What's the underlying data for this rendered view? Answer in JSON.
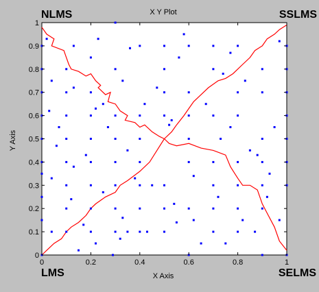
{
  "window": {
    "background_color": "#c0c0c0"
  },
  "corner_labels": {
    "top_left": "NLMS",
    "top_right": "SSLMS",
    "bottom_left": "LMS",
    "bottom_right": "SELMS"
  },
  "chart_data": {
    "type": "scatter",
    "title": "X Y Plot",
    "xlabel": "X Axis",
    "ylabel": "Y Axis",
    "xlim": [
      0,
      1
    ],
    "ylim": [
      0,
      1
    ],
    "xticks": [
      "0",
      "0.2",
      "0.4",
      "0.6",
      "0.8",
      "1"
    ],
    "yticks": [
      "0",
      "0.1",
      "0.2",
      "0.3",
      "0.4",
      "0.5",
      "0.6",
      "0.7",
      "0.8",
      "0.9",
      "1"
    ],
    "xtick_values": [
      0,
      0.2,
      0.4,
      0.6,
      0.8,
      1.0
    ],
    "ytick_values": [
      0,
      0.1,
      0.2,
      0.3,
      0.4,
      0.5,
      0.6,
      0.7,
      0.8,
      0.9,
      1.0
    ],
    "grid": false,
    "series": [
      {
        "type": "scatter",
        "color": "#0000ff",
        "marker": "dot",
        "x": [
          0.0,
          0.0,
          0.0,
          0.0,
          0.0,
          0.0,
          0.0,
          0.0,
          0.0,
          0.0,
          0.02,
          0.03,
          0.04,
          0.04,
          0.04,
          0.06,
          0.07,
          0.1,
          0.1,
          0.1,
          0.1,
          0.1,
          0.1,
          0.1,
          0.1,
          0.13,
          0.13,
          0.13,
          0.15,
          0.17,
          0.2,
          0.2,
          0.2,
          0.2,
          0.2,
          0.2,
          0.2,
          0.2,
          0.22,
          0.23,
          0.25,
          0.25,
          0.27,
          0.29,
          0.3,
          0.3,
          0.3,
          0.3,
          0.3,
          0.3,
          0.3,
          0.3,
          0.33,
          0.33,
          0.35,
          0.35,
          0.38,
          0.4,
          0.4,
          0.4,
          0.4,
          0.4,
          0.4,
          0.4,
          0.42,
          0.43,
          0.45,
          0.47,
          0.5,
          0.5,
          0.5,
          0.5,
          0.5,
          0.5,
          0.5,
          0.53,
          0.55,
          0.56,
          0.58,
          0.6,
          0.6,
          0.6,
          0.6,
          0.6,
          0.6,
          0.6,
          0.62,
          0.65,
          0.67,
          0.7,
          0.7,
          0.7,
          0.7,
          0.7,
          0.7,
          0.7,
          0.72,
          0.73,
          0.75,
          0.77,
          0.8,
          0.8,
          0.8,
          0.8,
          0.8,
          0.8,
          0.8,
          0.82,
          0.83,
          0.85,
          0.87,
          0.9,
          0.9,
          0.9,
          0.9,
          0.9,
          0.9,
          0.9,
          0.92,
          0.93,
          0.95,
          0.97,
          1.0,
          1.0,
          1.0,
          1.0,
          1.0,
          1.0,
          1.0,
          1.0,
          0.97,
          0.12,
          0.22,
          0.32,
          0.52,
          0.62,
          0.77,
          0.88,
          0.18,
          0.36,
          0.54,
          0.74
        ],
        "y": [
          0.0,
          0.15,
          0.25,
          0.35,
          0.4,
          0.5,
          0.6,
          0.7,
          0.8,
          0.9,
          0.93,
          0.62,
          0.33,
          0.75,
          0.1,
          0.47,
          0.55,
          0.1,
          0.2,
          0.3,
          0.4,
          0.5,
          0.6,
          0.7,
          0.8,
          0.9,
          0.38,
          0.72,
          0.02,
          0.13,
          0.1,
          0.2,
          0.3,
          0.4,
          0.5,
          0.6,
          0.7,
          0.85,
          0.05,
          0.93,
          0.27,
          0.65,
          0.55,
          0.0,
          0.1,
          0.2,
          0.3,
          0.4,
          0.5,
          0.6,
          0.8,
          1.0,
          0.16,
          0.75,
          0.1,
          0.45,
          0.33,
          0.1,
          0.2,
          0.3,
          0.4,
          0.5,
          0.6,
          0.9,
          0.65,
          0.1,
          0.3,
          0.72,
          0.1,
          0.2,
          0.3,
          0.6,
          0.7,
          0.8,
          0.9,
          0.58,
          0.14,
          0.85,
          0.95,
          0.0,
          0.2,
          0.4,
          0.5,
          0.6,
          0.7,
          0.9,
          0.15,
          0.05,
          0.65,
          0.1,
          0.2,
          0.3,
          0.4,
          0.6,
          0.8,
          0.9,
          0.25,
          0.5,
          0.05,
          0.55,
          0.1,
          0.2,
          0.3,
          0.4,
          0.6,
          0.7,
          0.9,
          0.15,
          0.75,
          0.45,
          0.1,
          0.0,
          0.2,
          0.3,
          0.4,
          0.5,
          0.7,
          0.8,
          0.25,
          0.35,
          0.55,
          0.15,
          0.0,
          0.3,
          0.4,
          0.5,
          0.6,
          0.7,
          0.8,
          0.9,
          0.92,
          0.24,
          0.63,
          0.07,
          0.56,
          0.34,
          0.87,
          0.43,
          0.43,
          0.89,
          0.22,
          0.78
        ]
      },
      {
        "type": "line",
        "color": "#ff0000",
        "segments": [
          {
            "x": [
              0.0,
              0.02,
              0.05,
              0.04,
              0.09,
              0.1,
              0.11,
              0.12,
              0.15,
              0.18,
              0.2,
              0.22,
              0.24,
              0.23,
              0.26,
              0.28,
              0.27,
              0.3,
              0.32,
              0.35,
              0.34,
              0.38,
              0.4,
              0.42,
              0.45,
              0.48,
              0.5
            ],
            "y": [
              0.98,
              0.95,
              0.93,
              0.9,
              0.88,
              0.85,
              0.82,
              0.8,
              0.79,
              0.77,
              0.78,
              0.75,
              0.73,
              0.72,
              0.69,
              0.7,
              0.66,
              0.65,
              0.62,
              0.6,
              0.58,
              0.57,
              0.55,
              0.56,
              0.53,
              0.51,
              0.5
            ]
          },
          {
            "x": [
              0.5,
              0.53,
              0.55,
              0.58,
              0.6,
              0.62,
              0.65,
              0.68,
              0.72,
              0.75,
              0.78,
              0.8,
              0.82,
              0.85,
              0.87,
              0.9,
              0.92,
              0.95,
              0.97,
              1.0
            ],
            "y": [
              0.5,
              0.53,
              0.56,
              0.6,
              0.63,
              0.66,
              0.69,
              0.72,
              0.75,
              0.76,
              0.78,
              0.8,
              0.82,
              0.85,
              0.88,
              0.9,
              0.93,
              0.95,
              0.97,
              0.99
            ]
          },
          {
            "x": [
              0.5,
              0.52,
              0.55,
              0.6,
              0.65,
              0.7,
              0.75,
              0.77,
              0.8,
              0.82,
              0.85,
              0.88,
              0.9,
              0.92,
              0.95,
              0.97,
              1.0
            ],
            "y": [
              0.5,
              0.48,
              0.47,
              0.48,
              0.46,
              0.45,
              0.43,
              0.38,
              0.33,
              0.3,
              0.3,
              0.28,
              0.22,
              0.18,
              0.12,
              0.06,
              0.02
            ]
          },
          {
            "x": [
              0.5,
              0.47,
              0.44,
              0.4,
              0.35,
              0.32,
              0.3,
              0.26,
              0.22,
              0.2,
              0.18,
              0.15,
              0.12,
              0.1,
              0.08,
              0.05,
              0.02,
              0.0
            ],
            "y": [
              0.5,
              0.45,
              0.4,
              0.36,
              0.32,
              0.3,
              0.27,
              0.25,
              0.22,
              0.2,
              0.17,
              0.14,
              0.12,
              0.1,
              0.07,
              0.05,
              0.02,
              0.0
            ]
          }
        ]
      }
    ]
  }
}
